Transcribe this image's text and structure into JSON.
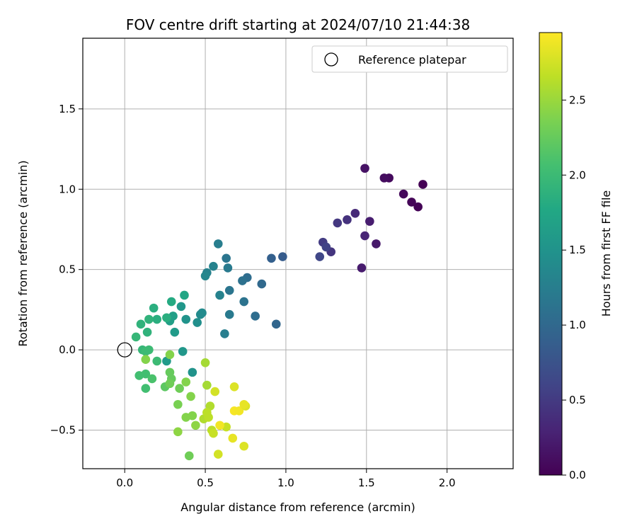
{
  "chart_data": {
    "type": "scatter",
    "title": "FOV centre drift starting at 2024/07/10 21:44:38",
    "xlabel": "Angular distance from reference (arcmin)",
    "ylabel": "Rotation from reference (arcmin)",
    "xlim": [
      -0.26,
      2.41
    ],
    "ylim": [
      -0.74,
      1.94
    ],
    "xticks": [
      0.0,
      0.5,
      1.0,
      1.5,
      2.0
    ],
    "xtick_labels": [
      "0.0",
      "0.5",
      "1.0",
      "1.5",
      "2.0"
    ],
    "yticks": [
      -0.5,
      0.0,
      0.5,
      1.0,
      1.5
    ],
    "ytick_labels": [
      "−0.5",
      "0.0",
      "0.5",
      "1.0",
      "1.5"
    ],
    "grid": true,
    "legend": {
      "position": "top-right",
      "entries": [
        "Reference platepar"
      ]
    },
    "reference_point": {
      "x": 0.0,
      "y": 0.0
    },
    "colorbar": {
      "label": "Hours from first FF file",
      "colormap": "viridis",
      "range": [
        0.0,
        2.95
      ],
      "ticks": [
        0.0,
        0.5,
        1.0,
        1.5,
        2.0,
        2.5
      ],
      "tick_labels": [
        "0.0",
        "0.5",
        "1.0",
        "1.5",
        "2.0",
        "2.5"
      ]
    },
    "points": [
      {
        "x": 1.85,
        "y": 1.03,
        "c": 0.0
      },
      {
        "x": 1.82,
        "y": 0.89,
        "c": 0.02
      },
      {
        "x": 1.78,
        "y": 0.92,
        "c": 0.04
      },
      {
        "x": 1.73,
        "y": 0.97,
        "c": 0.06
      },
      {
        "x": 1.64,
        "y": 1.07,
        "c": 0.08
      },
      {
        "x": 1.61,
        "y": 1.07,
        "c": 0.1
      },
      {
        "x": 1.49,
        "y": 1.13,
        "c": 0.14
      },
      {
        "x": 1.56,
        "y": 0.66,
        "c": 0.2
      },
      {
        "x": 1.52,
        "y": 0.8,
        "c": 0.24
      },
      {
        "x": 1.47,
        "y": 0.51,
        "c": 0.22
      },
      {
        "x": 1.49,
        "y": 0.71,
        "c": 0.3
      },
      {
        "x": 1.43,
        "y": 0.85,
        "c": 0.35
      },
      {
        "x": 1.38,
        "y": 0.81,
        "c": 0.42
      },
      {
        "x": 1.32,
        "y": 0.79,
        "c": 0.48
      },
      {
        "x": 1.28,
        "y": 0.61,
        "c": 0.45
      },
      {
        "x": 1.23,
        "y": 0.67,
        "c": 0.52
      },
      {
        "x": 1.25,
        "y": 0.64,
        "c": 0.58
      },
      {
        "x": 1.21,
        "y": 0.58,
        "c": 0.62
      },
      {
        "x": 0.98,
        "y": 0.58,
        "c": 0.85
      },
      {
        "x": 0.91,
        "y": 0.57,
        "c": 0.9
      },
      {
        "x": 0.94,
        "y": 0.16,
        "c": 0.97
      },
      {
        "x": 0.85,
        "y": 0.41,
        "c": 1.0
      },
      {
        "x": 0.81,
        "y": 0.21,
        "c": 1.05
      },
      {
        "x": 0.76,
        "y": 0.45,
        "c": 1.05
      },
      {
        "x": 0.73,
        "y": 0.43,
        "c": 1.1
      },
      {
        "x": 0.74,
        "y": 0.3,
        "c": 1.12
      },
      {
        "x": 0.65,
        "y": 0.37,
        "c": 1.15
      },
      {
        "x": 0.65,
        "y": 0.22,
        "c": 1.2
      },
      {
        "x": 0.62,
        "y": 0.1,
        "c": 1.25
      },
      {
        "x": 0.63,
        "y": 0.57,
        "c": 1.15
      },
      {
        "x": 0.64,
        "y": 0.51,
        "c": 1.2
      },
      {
        "x": 0.58,
        "y": 0.66,
        "c": 1.25
      },
      {
        "x": 0.59,
        "y": 0.34,
        "c": 1.3
      },
      {
        "x": 0.55,
        "y": 0.52,
        "c": 1.3
      },
      {
        "x": 0.51,
        "y": 0.48,
        "c": 1.3
      },
      {
        "x": 0.5,
        "y": 0.46,
        "c": 1.35
      },
      {
        "x": 0.48,
        "y": 0.23,
        "c": 1.4
      },
      {
        "x": 0.47,
        "y": 0.22,
        "c": 1.4
      },
      {
        "x": 0.45,
        "y": 0.17,
        "c": 1.45
      },
      {
        "x": 0.38,
        "y": 0.19,
        "c": 1.5
      },
      {
        "x": 0.35,
        "y": 0.27,
        "c": 1.55
      },
      {
        "x": 0.31,
        "y": 0.11,
        "c": 1.6
      },
      {
        "x": 0.36,
        "y": -0.01,
        "c": 1.55
      },
      {
        "x": 0.42,
        "y": -0.14,
        "c": 1.5
      },
      {
        "x": 0.26,
        "y": -0.07,
        "c": 1.6
      },
      {
        "x": 0.3,
        "y": 0.21,
        "c": 1.65
      },
      {
        "x": 0.28,
        "y": 0.18,
        "c": 1.65
      },
      {
        "x": 0.37,
        "y": 0.34,
        "c": 1.75
      },
      {
        "x": 0.29,
        "y": 0.3,
        "c": 1.8
      },
      {
        "x": 0.26,
        "y": 0.2,
        "c": 1.85
      },
      {
        "x": 0.2,
        "y": 0.19,
        "c": 1.85
      },
      {
        "x": 0.18,
        "y": 0.26,
        "c": 1.85
      },
      {
        "x": 0.15,
        "y": 0.19,
        "c": 1.9
      },
      {
        "x": 0.14,
        "y": 0.11,
        "c": 1.9
      },
      {
        "x": 0.1,
        "y": 0.16,
        "c": 1.9
      },
      {
        "x": 0.07,
        "y": 0.08,
        "c": 1.95
      },
      {
        "x": 0.11,
        "y": 0.0,
        "c": 1.95
      },
      {
        "x": 0.13,
        "y": -0.01,
        "c": 2.0
      },
      {
        "x": 0.15,
        "y": 0.0,
        "c": 2.0
      },
      {
        "x": 0.2,
        "y": -0.07,
        "c": 2.0
      },
      {
        "x": 0.09,
        "y": -0.16,
        "c": 2.05
      },
      {
        "x": 0.13,
        "y": -0.15,
        "c": 2.05
      },
      {
        "x": 0.13,
        "y": -0.24,
        "c": 2.05
      },
      {
        "x": 0.17,
        "y": -0.18,
        "c": 2.1
      },
      {
        "x": 0.25,
        "y": -0.23,
        "c": 2.2
      },
      {
        "x": 0.28,
        "y": -0.14,
        "c": 2.25
      },
      {
        "x": 0.29,
        "y": -0.18,
        "c": 2.25
      },
      {
        "x": 0.28,
        "y": -0.21,
        "c": 2.3
      },
      {
        "x": 0.34,
        "y": -0.24,
        "c": 2.3
      },
      {
        "x": 0.33,
        "y": -0.34,
        "c": 2.35
      },
      {
        "x": 0.28,
        "y": -0.03,
        "c": 2.4
      },
      {
        "x": 0.13,
        "y": -0.06,
        "c": 2.4
      },
      {
        "x": 0.38,
        "y": -0.2,
        "c": 2.4
      },
      {
        "x": 0.41,
        "y": -0.29,
        "c": 2.4
      },
      {
        "x": 0.38,
        "y": -0.42,
        "c": 2.4
      },
      {
        "x": 0.42,
        "y": -0.41,
        "c": 2.4
      },
      {
        "x": 0.44,
        "y": -0.47,
        "c": 2.45
      },
      {
        "x": 0.33,
        "y": -0.51,
        "c": 2.45
      },
      {
        "x": 0.4,
        "y": -0.66,
        "c": 2.3
      },
      {
        "x": 0.5,
        "y": -0.08,
        "c": 2.55
      },
      {
        "x": 0.51,
        "y": -0.22,
        "c": 2.55
      },
      {
        "x": 0.53,
        "y": -0.35,
        "c": 2.6
      },
      {
        "x": 0.49,
        "y": -0.43,
        "c": 2.6
      },
      {
        "x": 0.52,
        "y": -0.42,
        "c": 2.65
      },
      {
        "x": 0.51,
        "y": -0.39,
        "c": 2.65
      },
      {
        "x": 0.54,
        "y": -0.5,
        "c": 2.65
      },
      {
        "x": 0.55,
        "y": -0.52,
        "c": 2.7
      },
      {
        "x": 0.56,
        "y": -0.26,
        "c": 2.75
      },
      {
        "x": 0.58,
        "y": -0.65,
        "c": 2.75
      },
      {
        "x": 0.63,
        "y": -0.48,
        "c": 2.7
      },
      {
        "x": 0.59,
        "y": -0.47,
        "c": 2.9
      },
      {
        "x": 0.67,
        "y": -0.55,
        "c": 2.85
      },
      {
        "x": 0.68,
        "y": -0.23,
        "c": 2.8
      },
      {
        "x": 0.68,
        "y": -0.38,
        "c": 2.92
      },
      {
        "x": 0.71,
        "y": -0.38,
        "c": 2.9
      },
      {
        "x": 0.75,
        "y": -0.35,
        "c": 2.8
      },
      {
        "x": 0.74,
        "y": -0.34,
        "c": 2.85
      },
      {
        "x": 0.74,
        "y": -0.6,
        "c": 2.8
      }
    ]
  }
}
